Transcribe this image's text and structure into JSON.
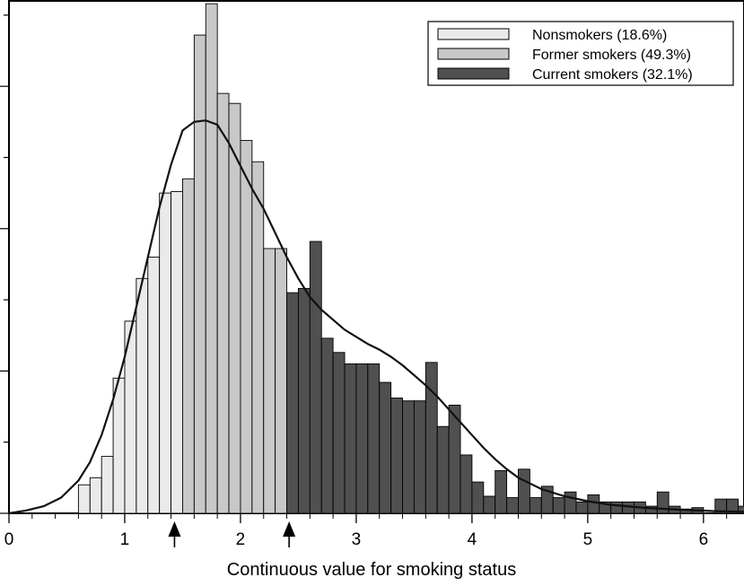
{
  "chart_data": {
    "type": "bar",
    "xlabel": "Continuous value for smoking status",
    "ylabel": "",
    "xlim": [
      0,
      6.35
    ],
    "ylim": [
      0,
      36
    ],
    "x_ticks": [
      0,
      1,
      2,
      3,
      4,
      5,
      6
    ],
    "y_ticks_unlabeled": true,
    "bin_width": 0.1,
    "bin_start": 0.6,
    "series": [
      {
        "name": "Nonsmokers (18.6%)",
        "color": "#eaeaea",
        "bin_start": 0.6,
        "values": [
          2.0,
          2.5,
          4.0,
          9.5,
          13.5,
          16.5,
          18.0,
          22.5,
          22.6
        ]
      },
      {
        "name": "Former smokers (49.3%)",
        "color": "#c8c8c8",
        "bin_start": 1.5,
        "values": [
          23.5,
          33.6,
          35.8,
          29.5,
          28.8,
          26.2,
          24.7,
          18.6,
          18.6
        ]
      },
      {
        "name": "Current smokers (32.1%)",
        "color": "#505050",
        "bin_start": 2.4,
        "values": [
          15.5,
          15.8,
          19.1,
          12.3,
          11.3,
          10.5,
          10.5,
          10.5,
          9.2,
          8.1,
          7.9,
          7.9,
          10.6,
          6.1,
          7.6,
          4.1,
          2.2,
          1.2,
          3.0,
          1.1,
          3.1,
          1.1,
          1.9,
          1.1,
          1.5,
          0.8,
          1.3,
          0.8,
          0.8,
          0.8,
          0.8,
          0.5,
          1.5,
          0.5,
          0.3,
          0.4,
          0.0,
          1.0,
          1.0,
          0.5,
          0.3,
          0.3,
          0.5
        ]
      }
    ],
    "density_curve": {
      "x": [
        0,
        0.15,
        0.3,
        0.45,
        0.6,
        0.7,
        0.8,
        0.9,
        1.0,
        1.1,
        1.2,
        1.3,
        1.4,
        1.5,
        1.6,
        1.7,
        1.8,
        1.9,
        2.0,
        2.1,
        2.2,
        2.3,
        2.4,
        2.5,
        2.6,
        2.7,
        2.8,
        2.9,
        3.0,
        3.1,
        3.2,
        3.3,
        3.4,
        3.5,
        3.6,
        3.7,
        3.8,
        3.9,
        4.0,
        4.1,
        4.2,
        4.3,
        4.4,
        4.6,
        4.8,
        5.0,
        5.2,
        5.5,
        5.8,
        6.1,
        6.35
      ],
      "y": [
        0,
        0.2,
        0.5,
        1.1,
        2.3,
        3.6,
        5.5,
        8.0,
        11.0,
        14.5,
        18.0,
        21.5,
        24.5,
        26.9,
        27.5,
        27.6,
        27.3,
        26.0,
        24.4,
        22.8,
        21.4,
        19.7,
        18.0,
        16.5,
        15.2,
        14.3,
        13.6,
        12.9,
        12.4,
        11.9,
        11.5,
        11.0,
        10.4,
        9.7,
        9.0,
        8.2,
        7.3,
        6.4,
        5.5,
        4.6,
        3.8,
        3.1,
        2.5,
        1.7,
        1.2,
        0.85,
        0.6,
        0.38,
        0.25,
        0.15,
        0.1
      ]
    },
    "arrows_at": [
      1.43,
      2.42
    ],
    "legend": "top-right"
  }
}
